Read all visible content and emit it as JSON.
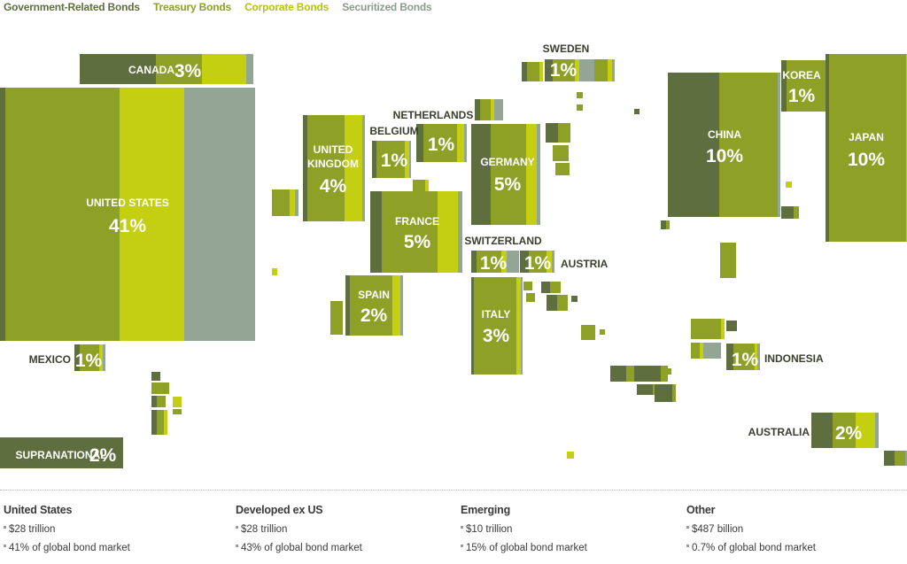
{
  "colors": {
    "government": "#5f6e3f",
    "treasury": "#8fa027",
    "corporate": "#c3cf10",
    "securitized": "#93a695",
    "label_dark": "#3a3f2e",
    "label_light": "#ffffff"
  },
  "legend": [
    {
      "label": "Government-Related Bonds",
      "color": "#5f6e3f"
    },
    {
      "label": "Treasury Bonds",
      "color": "#8fa027"
    },
    {
      "label": "Corporate Bonds",
      "color": "#b7c30c"
    },
    {
      "label": "Securitized Bonds",
      "color": "#8a9c8c"
    }
  ],
  "chart_data": {
    "type": "treemap",
    "legend_placement": "top-left",
    "labeled_markets": [
      {
        "name": "CANADA",
        "share": "3%"
      },
      {
        "name": "UNITED STATES",
        "share": "41%"
      },
      {
        "name": "MEXICO",
        "share": "1%"
      },
      {
        "name": "SUPRANATIONAL",
        "share": "2%"
      },
      {
        "name": "UNITED KINGDOM",
        "share": "4%"
      },
      {
        "name": "BELGIUM",
        "share": "1%"
      },
      {
        "name": "NETHERLANDS",
        "share": "1%"
      },
      {
        "name": "GERMANY",
        "share": "5%"
      },
      {
        "name": "SWEDEN",
        "share": "1%"
      },
      {
        "name": "FRANCE",
        "share": "5%"
      },
      {
        "name": "SPAIN",
        "share": "2%"
      },
      {
        "name": "SWITZERLAND",
        "share": "1%"
      },
      {
        "name": "AUSTRIA",
        "share": "1%"
      },
      {
        "name": "ITALY",
        "share": "3%"
      },
      {
        "name": "CHINA",
        "share": "10%"
      },
      {
        "name": "KOREA",
        "share": "1%"
      },
      {
        "name": "JAPAN",
        "share": "10%"
      },
      {
        "name": "INDONESIA",
        "share": "1%"
      },
      {
        "name": "AUSTRALIA",
        "share": "2%"
      }
    ]
  },
  "summary": [
    {
      "title": "United States",
      "value": "$28 trillion",
      "share": "41% of global bond market"
    },
    {
      "title": "Developed ex US",
      "value": "$28 trillion",
      "share": "43% of global bond market"
    },
    {
      "title": "Emerging",
      "value": "$10 trillion",
      "share": "15% of global bond market"
    },
    {
      "title": "Other",
      "value": "$487 billion",
      "share": "0.7% of global bond market"
    }
  ]
}
